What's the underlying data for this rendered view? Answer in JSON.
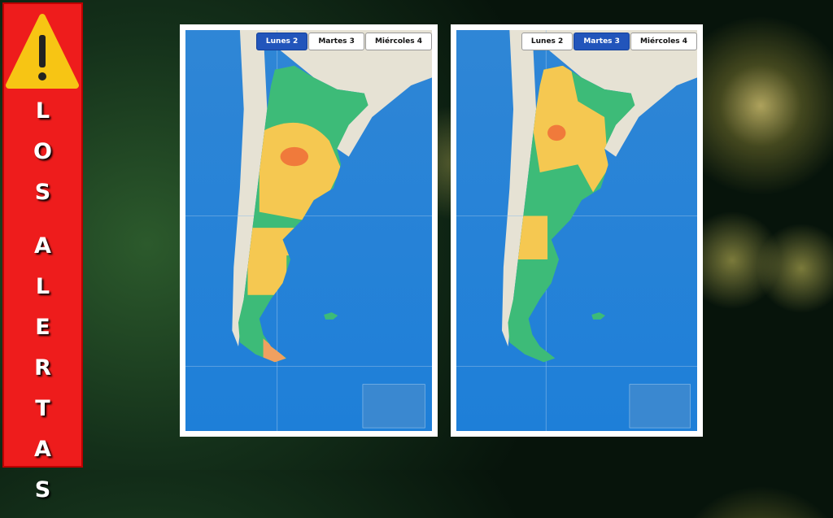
{
  "banner": {
    "words": [
      "LOS",
      "ALERTAS"
    ]
  },
  "maps": [
    {
      "tabs": [
        "Lunes 2",
        "Martes 3",
        "Miércoles 4"
      ],
      "active_tab": 0
    },
    {
      "tabs": [
        "Lunes 2",
        "Martes 3",
        "Miércoles 4"
      ],
      "active_tab": 1
    }
  ]
}
